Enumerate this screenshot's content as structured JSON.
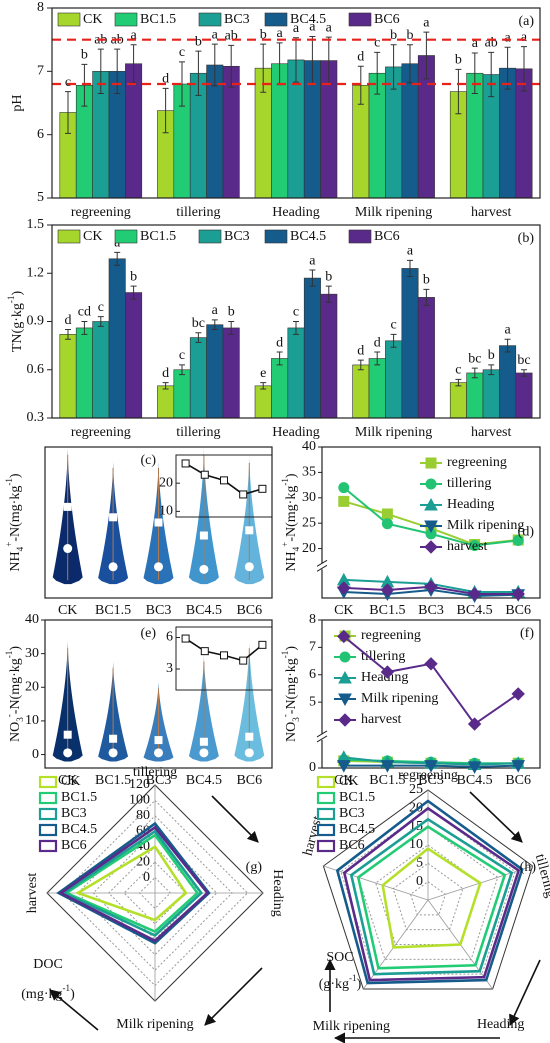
{
  "chart_data": [
    {
      "type": "bar",
      "tag": "(a)",
      "ylabel": [
        {
          "text": "pH"
        }
      ],
      "categories": [
        "regreening",
        "tillering",
        "Heading",
        "Milk ripening",
        "harvest"
      ],
      "ylim": [
        5,
        8
      ],
      "yticks": [
        5,
        6,
        7,
        8
      ],
      "reference_lines": [
        7.5,
        6.8
      ],
      "reference_color": "#e8211b",
      "series": [
        {
          "name": "CK",
          "color": "#a6d52b",
          "values": [
            6.35,
            6.38,
            7.05,
            6.78,
            6.68
          ],
          "errors": [
            0.33,
            0.35,
            0.38,
            0.3,
            0.35
          ],
          "letters": [
            "c",
            "d",
            "b",
            "d",
            "b"
          ]
        },
        {
          "name": "BC1.5",
          "color": "#22cc74",
          "values": [
            6.78,
            6.8,
            7.12,
            6.97,
            6.97
          ],
          "errors": [
            0.33,
            0.35,
            0.33,
            0.33,
            0.32
          ],
          "letters": [
            "b",
            "c",
            "a",
            "c",
            "a"
          ]
        },
        {
          "name": "BC3",
          "color": "#1b9e94",
          "values": [
            7.0,
            6.97,
            7.18,
            7.07,
            6.95
          ],
          "errors": [
            0.35,
            0.35,
            0.35,
            0.35,
            0.35
          ],
          "letters": [
            "ab",
            "b",
            "a",
            "b",
            "ab"
          ]
        },
        {
          "name": "BC4.5",
          "color": "#155b8c",
          "values": [
            7.0,
            7.1,
            7.17,
            7.12,
            7.05
          ],
          "errors": [
            0.35,
            0.33,
            0.38,
            0.3,
            0.33
          ],
          "letters": [
            "ab",
            "a",
            "a",
            "b",
            "a"
          ]
        },
        {
          "name": "BC6",
          "color": "#5a2a8a",
          "values": [
            7.12,
            7.08,
            7.17,
            7.25,
            7.04
          ],
          "errors": [
            0.3,
            0.33,
            0.37,
            0.37,
            0.35
          ],
          "letters": [
            "a",
            "ab",
            "a",
            "a",
            "a"
          ]
        }
      ]
    },
    {
      "type": "bar",
      "tag": "(b)",
      "ylabel": [
        {
          "text": "TN(g·kg"
        },
        {
          "text": "-1",
          "shift": "sup"
        },
        {
          "text": ")"
        }
      ],
      "categories": [
        "regreening",
        "tillering",
        "Heading",
        "Milk ripening",
        "harvest"
      ],
      "ylim": [
        0.3,
        1.5
      ],
      "yticks": [
        0.3,
        0.6,
        0.9,
        1.2,
        1.5
      ],
      "series": [
        {
          "name": "CK",
          "color": "#a6d52b",
          "values": [
            0.82,
            0.5,
            0.5,
            0.63,
            0.52
          ],
          "errors": [
            0.03,
            0.02,
            0.02,
            0.03,
            0.02
          ],
          "letters": [
            "d",
            "d",
            "e",
            "d",
            "c"
          ]
        },
        {
          "name": "BC1.5",
          "color": "#22cc74",
          "values": [
            0.86,
            0.6,
            0.67,
            0.67,
            0.58
          ],
          "errors": [
            0.04,
            0.03,
            0.04,
            0.04,
            0.03
          ],
          "letters": [
            "cd",
            "c",
            "d",
            "d",
            "bc"
          ]
        },
        {
          "name": "BC3",
          "color": "#1b9e94",
          "values": [
            0.9,
            0.8,
            0.86,
            0.78,
            0.6
          ],
          "errors": [
            0.03,
            0.03,
            0.04,
            0.04,
            0.03
          ],
          "letters": [
            "c",
            "bc",
            "c",
            "c",
            "b"
          ]
        },
        {
          "name": "BC4.5",
          "color": "#155b8c",
          "values": [
            1.29,
            0.88,
            1.17,
            1.23,
            0.75
          ],
          "errors": [
            0.04,
            0.03,
            0.05,
            0.05,
            0.04
          ],
          "letters": [
            "a",
            "a",
            "a",
            "a",
            "a"
          ]
        },
        {
          "name": "BC6",
          "color": "#5a2a8a",
          "values": [
            1.08,
            0.86,
            1.07,
            1.05,
            0.58
          ],
          "errors": [
            0.04,
            0.04,
            0.05,
            0.05,
            0.02
          ],
          "letters": [
            "b",
            "b",
            "b",
            "b",
            "bc"
          ]
        }
      ]
    },
    {
      "type": "violin",
      "tag": "(c)",
      "ylabel": [
        {
          "text": "NH"
        },
        {
          "text": "4",
          "shift": "sub"
        },
        {
          "text": "+",
          "shift": "sup"
        },
        {
          "text": "-N(mg·kg"
        },
        {
          "text": "-1",
          "shift": "sup"
        },
        {
          "text": ")"
        }
      ],
      "categories": [
        "CK",
        "BC1.5",
        "BC3",
        "BC4.5",
        "BC6"
      ],
      "ylim": [
        -8,
        50
      ],
      "colors": [
        "#0b2a6b",
        "#1a4f9e",
        "#2a72b8",
        "#3f95cc",
        "#63b3dc"
      ],
      "max": [
        50,
        45,
        45,
        50,
        47
      ],
      "means": [
        27,
        23,
        21,
        16,
        18
      ],
      "medians": [
        11,
        4,
        4,
        3,
        4
      ],
      "inset_ylim": [
        8,
        30
      ],
      "inset_yticks": [
        10,
        20
      ]
    },
    {
      "type": "line",
      "tag": "(d)",
      "ylabel": [
        {
          "text": "NH"
        },
        {
          "text": "4",
          "shift": "sub"
        },
        {
          "text": "+",
          "shift": "sup"
        },
        {
          "text": "-N(mg·kg"
        },
        {
          "text": "-1",
          "shift": "sup"
        },
        {
          "text": ")"
        }
      ],
      "categories": [
        "CK",
        "BC1.5",
        "BC3",
        "BC4.5",
        "BC6"
      ],
      "ylim": [
        18,
        40
      ],
      "yticks": [
        20,
        25,
        30,
        35,
        40
      ],
      "lower_ylim": [
        0,
        6
      ],
      "legend": "upper right",
      "series": [
        {
          "name": "regreening",
          "color": "#9acd32",
          "marker": "square",
          "values": [
            29.3,
            26.8,
            24,
            20.8,
            21.7
          ]
        },
        {
          "name": "tillering",
          "color": "#22c474",
          "marker": "circle",
          "values": [
            32,
            24.9,
            22.9,
            20.6,
            21.6
          ]
        },
        {
          "name": "Heading",
          "color": "#1b9e94",
          "marker": "triangle",
          "values": [
            4.5,
            4,
            3.5,
            1.5,
            1.5
          ]
        },
        {
          "name": "Milk ripening",
          "color": "#155b8c",
          "marker": "triangle-down",
          "values": [
            1.5,
            1,
            2,
            0.5,
            0.8
          ]
        },
        {
          "name": "harvest",
          "color": "#5a2a8a",
          "marker": "diamond",
          "values": [
            2.5,
            2,
            2.8,
            1,
            1
          ]
        }
      ]
    },
    {
      "type": "violin",
      "tag": "(e)",
      "ylabel": [
        {
          "text": "NO"
        },
        {
          "text": "3",
          "shift": "sub"
        },
        {
          "text": "-",
          "shift": "sup"
        },
        {
          "text": "-N(mg·kg"
        },
        {
          "text": "-1",
          "shift": "sup"
        },
        {
          "text": ")"
        }
      ],
      "categories": [
        "CK",
        "BC1.5",
        "BC3",
        "BC4.5",
        "BC6"
      ],
      "ylim": [
        -4,
        40
      ],
      "yticks": [
        0,
        10,
        20,
        30,
        40
      ],
      "colors": [
        "#08306b",
        "#1f5a9e",
        "#3a7dbc",
        "#4a9ad0",
        "#6bbde0"
      ],
      "max": [
        34,
        28,
        22,
        30,
        34
      ],
      "means": [
        5.9,
        4.7,
        4.3,
        3.8,
        5.3
      ],
      "medians": [
        0.5,
        0.5,
        0.5,
        0.5,
        0.5
      ],
      "inset_ylim": [
        1,
        7
      ],
      "inset_yticks": [
        3,
        6
      ]
    },
    {
      "type": "line",
      "tag": "(f)",
      "ylabel": [
        {
          "text": "NO"
        },
        {
          "text": "3",
          "shift": "sub"
        },
        {
          "text": "-",
          "shift": "sup"
        },
        {
          "text": "-N(mg·kg"
        },
        {
          "text": "-1",
          "shift": "sup"
        },
        {
          "text": ")"
        }
      ],
      "categories": [
        "CK",
        "BC1.5",
        "BC3",
        "BC4.5",
        "BC6"
      ],
      "ylim": [
        4,
        8
      ],
      "yticks": [
        5,
        6,
        7,
        8
      ],
      "lower_ylim": [
        0,
        1
      ],
      "lower_yticks": [
        0
      ],
      "legend": "upper left",
      "series": [
        {
          "name": "regreening",
          "color": "#9acd32",
          "marker": "square",
          "values": [
            0.3,
            0.25,
            0.2,
            0.15,
            0.2
          ]
        },
        {
          "name": "tillering",
          "color": "#22c474",
          "marker": "circle",
          "values": [
            0.35,
            0.3,
            0.25,
            0.2,
            0.2
          ]
        },
        {
          "name": "Heading",
          "color": "#1b9e94",
          "marker": "triangle",
          "values": [
            0.45,
            0.25,
            0.2,
            0.15,
            0.2
          ]
        },
        {
          "name": "Milk ripening",
          "color": "#155b8c",
          "marker": "triangle-down",
          "values": [
            0.1,
            0.1,
            0.1,
            0.05,
            0.1
          ]
        },
        {
          "name": "harvest",
          "color": "#5a2a8a",
          "marker": "diamond",
          "values": [
            7.4,
            6.1,
            6.4,
            4.2,
            5.3
          ]
        }
      ]
    },
    {
      "type": "radar",
      "tag": "(g)",
      "axes": [
        "tillering",
        "Heading",
        "Milk ripening",
        "harvest"
      ],
      "rlim": [
        -20,
        120
      ],
      "rticks": [
        0,
        20,
        40,
        60,
        80,
        100,
        120
      ],
      "unit_name": "DOC",
      "unit": [
        {
          "text": "(mg·kg"
        },
        {
          "text": "-1",
          "shift": "sup"
        },
        {
          "text": ")"
        }
      ],
      "series": [
        {
          "name": "CK",
          "color": "#b5e02a",
          "values": [
            40,
            20,
            15,
            80
          ]
        },
        {
          "name": "BC1.5",
          "color": "#22cc74",
          "values": [
            55,
            35,
            30,
            95
          ]
        },
        {
          "name": "BC3",
          "color": "#1b9e94",
          "values": [
            60,
            40,
            35,
            98
          ]
        },
        {
          "name": "BC4.5",
          "color": "#155b8c",
          "values": [
            70,
            50,
            45,
            105
          ]
        },
        {
          "name": "BC6",
          "color": "#5a2a8a",
          "values": [
            65,
            48,
            42,
            102
          ]
        }
      ]
    },
    {
      "type": "radar",
      "tag": "(h)",
      "axes": [
        "regreening",
        "tillering",
        "Heading",
        "Milk ripening",
        "harvest"
      ],
      "rlim": [
        -5,
        25
      ],
      "rticks": [
        0,
        5,
        10,
        15,
        20,
        25
      ],
      "unit_name": "SOC",
      "unit": [
        {
          "text": "(g·kg"
        },
        {
          "text": "-1",
          "shift": "sup"
        },
        {
          "text": ")"
        }
      ],
      "series": [
        {
          "name": "CK",
          "color": "#b5e02a",
          "values": [
            9,
            10,
            10,
            11,
            8
          ]
        },
        {
          "name": "BC1.5",
          "color": "#22cc74",
          "values": [
            15,
            17,
            17,
            18,
            15
          ]
        },
        {
          "name": "BC3",
          "color": "#1b9e94",
          "values": [
            17,
            19,
            19,
            20,
            17
          ]
        },
        {
          "name": "BC4.5",
          "color": "#155b8c",
          "values": [
            22,
            22,
            22,
            23,
            21
          ]
        },
        {
          "name": "BC6",
          "color": "#5a2a8a",
          "values": [
            20,
            21,
            21,
            22,
            19
          ]
        }
      ]
    }
  ]
}
